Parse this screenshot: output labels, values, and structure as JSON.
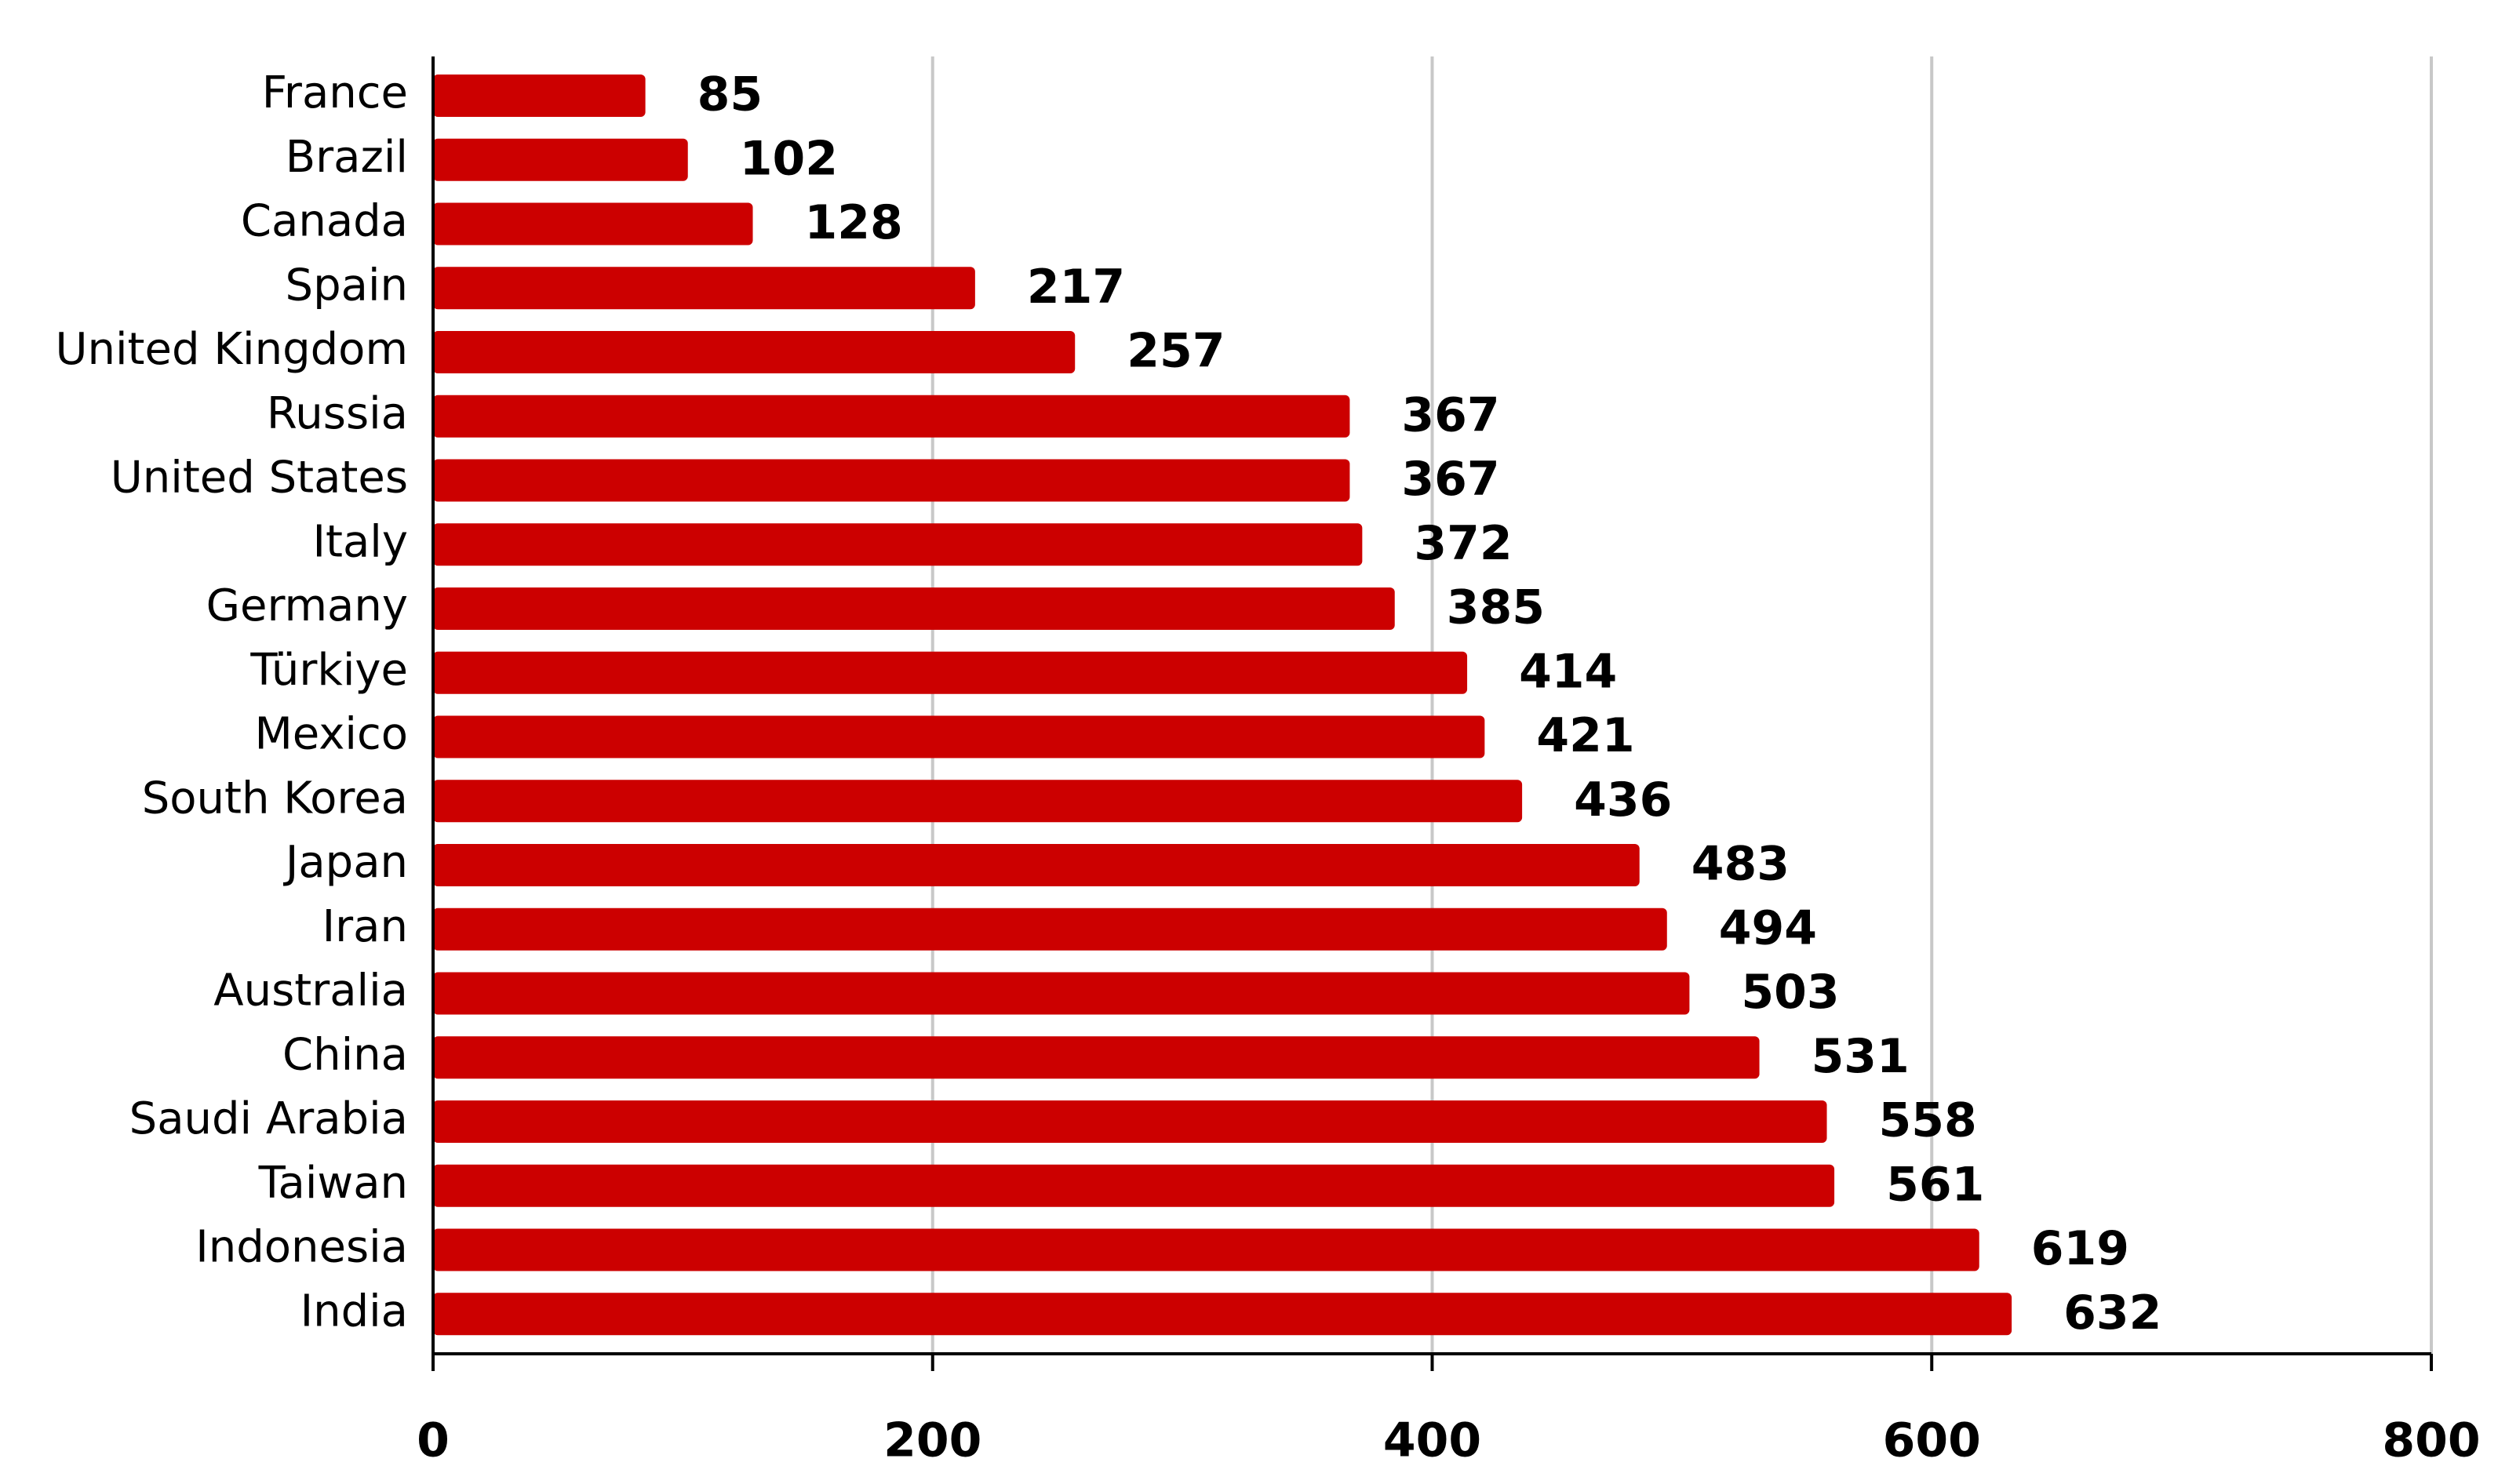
{
  "chart_data": {
    "type": "barh",
    "orientation": "horizontal",
    "categories": [
      "France",
      "Brazil",
      "Canada",
      "Spain",
      "United Kingdom",
      "Russia",
      "United States",
      "Italy",
      "Germany",
      "Türkiye",
      "Mexico",
      "South Korea",
      "Japan",
      "Iran",
      "Australia",
      "China",
      "Saudi Arabia",
      "Taiwan",
      "Indonesia",
      "India"
    ],
    "values": [
      85,
      102,
      128,
      217,
      257,
      367,
      367,
      372,
      385,
      414,
      421,
      436,
      483,
      494,
      503,
      531,
      558,
      561,
      619,
      632
    ],
    "color": "#cc0000",
    "xlim": [
      0,
      800
    ],
    "xticks": [
      0,
      200,
      400,
      600,
      800
    ],
    "grid": true
  }
}
